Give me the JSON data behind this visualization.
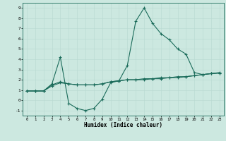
{
  "xlabel": "Humidex (Indice chaleur)",
  "xlim": [
    -0.5,
    23.5
  ],
  "ylim": [
    -1.5,
    9.5
  ],
  "yticks": [
    -1,
    0,
    1,
    2,
    3,
    4,
    5,
    6,
    7,
    8,
    9
  ],
  "xticks": [
    0,
    1,
    2,
    3,
    4,
    5,
    6,
    7,
    8,
    9,
    10,
    11,
    12,
    13,
    14,
    15,
    16,
    17,
    18,
    19,
    20,
    21,
    22,
    23
  ],
  "bg_color": "#cce8e0",
  "line_color": "#1a6b5a",
  "line1_x": [
    0,
    1,
    2,
    3,
    4,
    5,
    6,
    7,
    8,
    9,
    10,
    11,
    12,
    13,
    14,
    15,
    16,
    17,
    18,
    19,
    20,
    21,
    22,
    23
  ],
  "line1_y": [
    0.9,
    0.9,
    0.9,
    1.6,
    4.2,
    -0.3,
    -0.8,
    -1.0,
    -0.8,
    0.1,
    1.7,
    1.9,
    3.4,
    7.7,
    9.0,
    7.5,
    6.5,
    5.9,
    5.0,
    4.5,
    2.7,
    2.5,
    2.6,
    2.7
  ],
  "line2_x": [
    0,
    1,
    2,
    3,
    4,
    5,
    6,
    7,
    8,
    9,
    10,
    11,
    12,
    13,
    14,
    15,
    16,
    17,
    18,
    19,
    20,
    21,
    22,
    23
  ],
  "line2_y": [
    0.9,
    0.9,
    0.9,
    1.5,
    1.8,
    1.6,
    1.5,
    1.5,
    1.5,
    1.6,
    1.8,
    1.9,
    2.0,
    2.0,
    2.1,
    2.1,
    2.2,
    2.2,
    2.3,
    2.3,
    2.4,
    2.5,
    2.6,
    2.65
  ],
  "line3_x": [
    0,
    1,
    2,
    3,
    4,
    5,
    6,
    7,
    8,
    9,
    10,
    11,
    12,
    13,
    14,
    15,
    16,
    17,
    18,
    19,
    20,
    21,
    22,
    23
  ],
  "line3_y": [
    0.9,
    0.9,
    0.9,
    1.4,
    1.7,
    1.6,
    1.5,
    1.5,
    1.5,
    1.6,
    1.8,
    1.9,
    2.0,
    2.0,
    2.0,
    2.1,
    2.1,
    2.2,
    2.2,
    2.3,
    2.4,
    2.5,
    2.6,
    2.65
  ]
}
